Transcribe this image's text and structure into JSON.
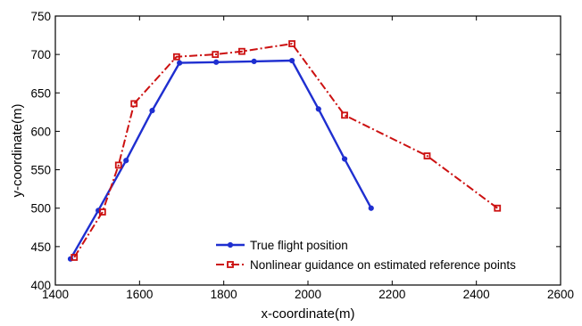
{
  "chart_data": {
    "type": "line",
    "title": "",
    "xlabel": "x-coordinate(m)",
    "ylabel": "y-coordinate(m)",
    "xlim": [
      1400,
      2600
    ],
    "ylim": [
      400,
      750
    ],
    "xticks": [
      1400,
      1600,
      1800,
      2000,
      2200,
      2400,
      2600
    ],
    "yticks": [
      400,
      450,
      500,
      550,
      600,
      650,
      700,
      750
    ],
    "grid": false,
    "legend_position": "bottom-right",
    "series": [
      {
        "name": "True flight position",
        "color": "#1f2fd0",
        "line_style": "solid",
        "marker": "circle",
        "points": [
          [
            1436,
            434
          ],
          [
            1502,
            497
          ],
          [
            1568,
            562
          ],
          [
            1630,
            627
          ],
          [
            1695,
            689
          ],
          [
            1782,
            690
          ],
          [
            1872,
            691
          ],
          [
            1962,
            692
          ],
          [
            2025,
            629
          ],
          [
            2087,
            564
          ],
          [
            2150,
            500
          ]
        ]
      },
      {
        "name": "Nonlinear guidance on estimated reference points",
        "color": "#cc1111",
        "line_style": "dash-dot",
        "marker": "square",
        "points": [
          [
            1445,
            436
          ],
          [
            1512,
            495
          ],
          [
            1550,
            556
          ],
          [
            1587,
            636
          ],
          [
            1688,
            697
          ],
          [
            1780,
            700
          ],
          [
            1843,
            704
          ],
          [
            1962,
            714
          ],
          [
            2087,
            621
          ],
          [
            2283,
            568
          ],
          [
            2450,
            500
          ]
        ]
      }
    ]
  }
}
